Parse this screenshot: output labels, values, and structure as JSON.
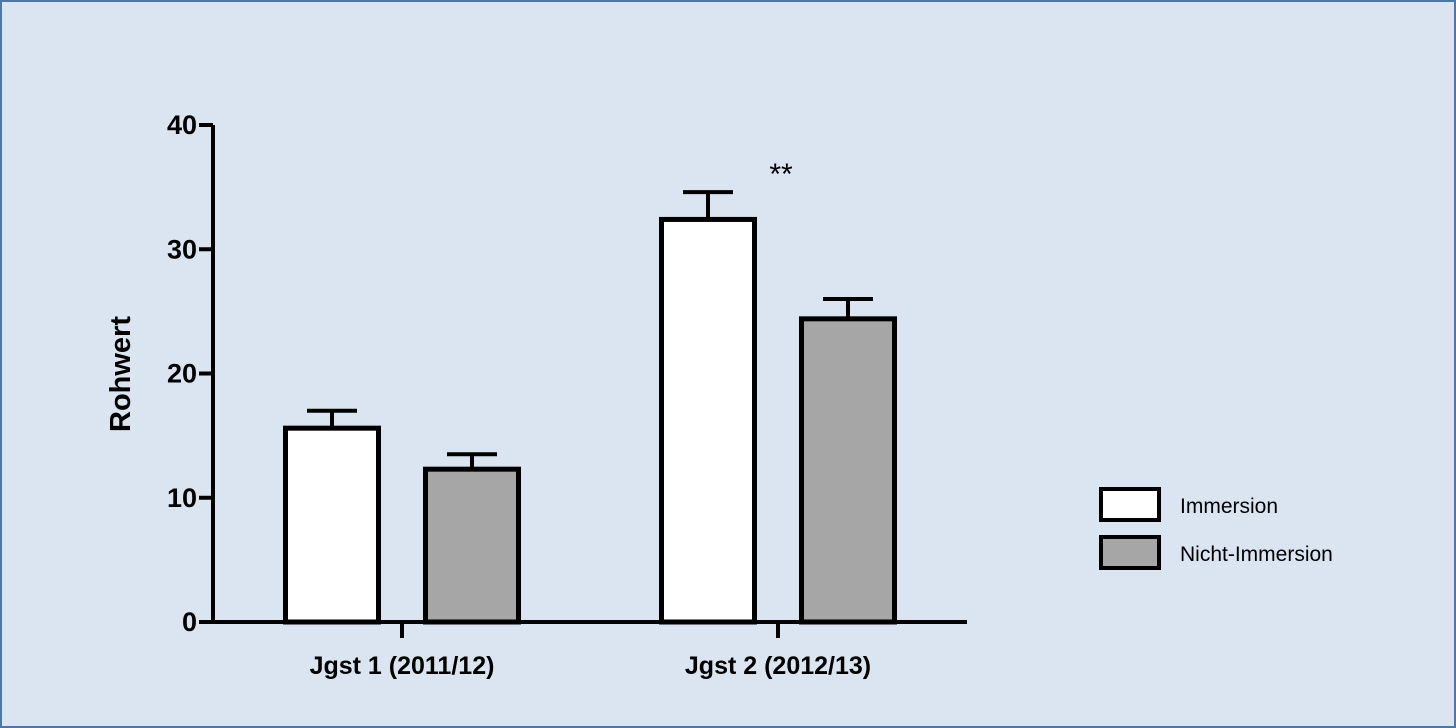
{
  "chart_data": {
    "type": "bar",
    "ylabel": "Rohwert",
    "xlabel": "",
    "ylim": [
      0,
      40
    ],
    "yticks": [
      "0",
      "10",
      "20",
      "30",
      "40"
    ],
    "categories": [
      "Jgst 1 (2011/12)",
      "Jgst 2 (2012/13)"
    ],
    "series": [
      {
        "name": "Immersion",
        "values": [
          15.6,
          32.4
        ],
        "errors": [
          1.4,
          2.2
        ],
        "color": "#ffffff"
      },
      {
        "name": "Nicht-Immersion",
        "values": [
          12.3,
          24.4
        ],
        "errors": [
          1.2,
          1.6
        ],
        "color": "#a6a6a6"
      }
    ],
    "annotations": [
      {
        "text": "**",
        "category_index": 1,
        "series_index": 0
      }
    ],
    "legend_position": "right",
    "grid": false
  },
  "colors": {
    "background": "#dbe5f1",
    "border": "#4f76a8",
    "axis": "#000000"
  }
}
